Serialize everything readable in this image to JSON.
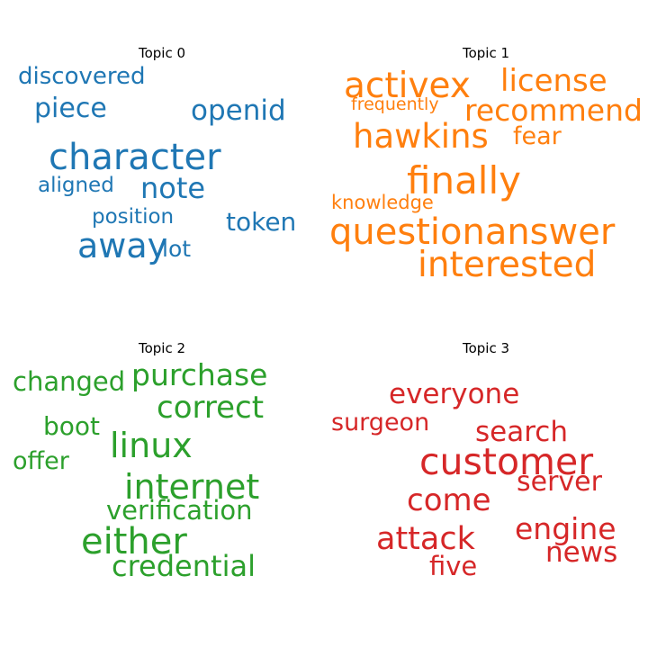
{
  "topics": [
    {
      "title": "Topic 0",
      "color": "#1f77b4",
      "words": [
        {
          "text": "discovered"
        },
        {
          "text": "piece"
        },
        {
          "text": "openid"
        },
        {
          "text": "character"
        },
        {
          "text": "aligned"
        },
        {
          "text": "note"
        },
        {
          "text": "position"
        },
        {
          "text": "token"
        },
        {
          "text": "away"
        },
        {
          "text": "lot"
        }
      ]
    },
    {
      "title": "Topic 1",
      "color": "#ff7f0e",
      "words": [
        {
          "text": "activex"
        },
        {
          "text": "license"
        },
        {
          "text": "frequently"
        },
        {
          "text": "recommend"
        },
        {
          "text": "hawkins"
        },
        {
          "text": "fear"
        },
        {
          "text": "finally"
        },
        {
          "text": "knowledge"
        },
        {
          "text": "questionanswer"
        },
        {
          "text": "interested"
        }
      ]
    },
    {
      "title": "Topic 2",
      "color": "#2ca02c",
      "words": [
        {
          "text": "changed"
        },
        {
          "text": "purchase"
        },
        {
          "text": "correct"
        },
        {
          "text": "boot"
        },
        {
          "text": "linux"
        },
        {
          "text": "offer"
        },
        {
          "text": "internet"
        },
        {
          "text": "verification"
        },
        {
          "text": "either"
        },
        {
          "text": "credential"
        }
      ]
    },
    {
      "title": "Topic 3",
      "color": "#d62728",
      "words": [
        {
          "text": "everyone"
        },
        {
          "text": "surgeon"
        },
        {
          "text": "search"
        },
        {
          "text": "customer"
        },
        {
          "text": "server"
        },
        {
          "text": "come"
        },
        {
          "text": "engine"
        },
        {
          "text": "attack"
        },
        {
          "text": "news"
        },
        {
          "text": "five"
        }
      ]
    }
  ]
}
